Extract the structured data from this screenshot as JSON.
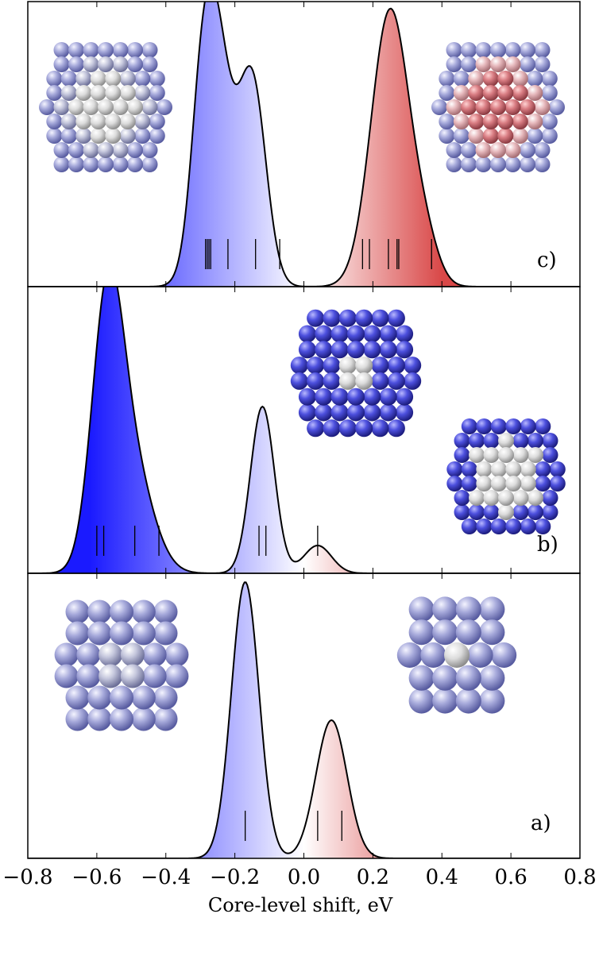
{
  "chart_data": [
    {
      "panel": "c)",
      "type": "area",
      "peaks": [
        {
          "center": -0.26,
          "width": 0.045,
          "height": 0.96
        },
        {
          "center": -0.15,
          "width": 0.04,
          "height": 0.74
        },
        {
          "center": -0.3,
          "width": 0.03,
          "height": 0.25
        },
        {
          "center": 0.25,
          "width": 0.055,
          "height": 1.0
        },
        {
          "center": 0.35,
          "width": 0.04,
          "height": 0.14
        }
      ],
      "stick_positions": [
        -0.285,
        -0.28,
        -0.275,
        -0.27,
        -0.22,
        -0.14,
        -0.07,
        0.17,
        0.19,
        0.245,
        0.27,
        0.275,
        0.37
      ],
      "ylim": [
        0,
        1.02
      ]
    },
    {
      "panel": "b)",
      "type": "area",
      "peaks": [
        {
          "center": -0.57,
          "width": 0.045,
          "height": 0.9
        },
        {
          "center": -0.5,
          "width": 0.06,
          "height": 0.38
        },
        {
          "center": -0.12,
          "width": 0.035,
          "height": 0.6
        },
        {
          "center": 0.04,
          "width": 0.04,
          "height": 0.1
        }
      ],
      "stick_positions": [
        -0.6,
        -0.58,
        -0.49,
        -0.42,
        -0.13,
        -0.11,
        0.04
      ],
      "ylim": [
        0,
        1.02
      ]
    },
    {
      "panel": "a)",
      "type": "area",
      "peaks": [
        {
          "center": -0.17,
          "width": 0.04,
          "height": 1.0
        },
        {
          "center": 0.08,
          "width": 0.045,
          "height": 0.5
        }
      ],
      "stick_positions": [
        -0.17,
        0.04,
        0.11
      ],
      "ylim": [
        0,
        1.02
      ]
    }
  ],
  "axis": {
    "xlabel": "Core-level shift, eV",
    "xlim": [
      -0.8,
      0.8
    ],
    "ticks": [
      -0.8,
      -0.6,
      -0.4,
      -0.2,
      0.0,
      0.2,
      0.4,
      0.6,
      0.8
    ],
    "tick_labels": [
      "−0.8",
      "−0.6",
      "−0.4",
      "−0.2",
      "0.0",
      "0.2",
      "0.4",
      "0.6",
      "0.8"
    ]
  },
  "colors": {
    "negative": "#1a1aff",
    "neutral": "#ffffff",
    "positive": "#d94848",
    "line": "#000000"
  },
  "clusters": [
    {
      "name": "icosahedral-cluster-c-left",
      "panel": "c)",
      "coloring": "grey-lavender"
    },
    {
      "name": "cluster-c-right",
      "panel": "c)",
      "coloring": "red-pink"
    },
    {
      "name": "cluster-b-top",
      "panel": "b)",
      "coloring": "blue"
    },
    {
      "name": "cluster-b-right",
      "panel": "b)",
      "coloring": "blue-white"
    },
    {
      "name": "cluster-a-left",
      "panel": "a)",
      "coloring": "grey-lavender"
    },
    {
      "name": "cluster-a-right",
      "panel": "a)",
      "coloring": "grey-lavender"
    }
  ]
}
